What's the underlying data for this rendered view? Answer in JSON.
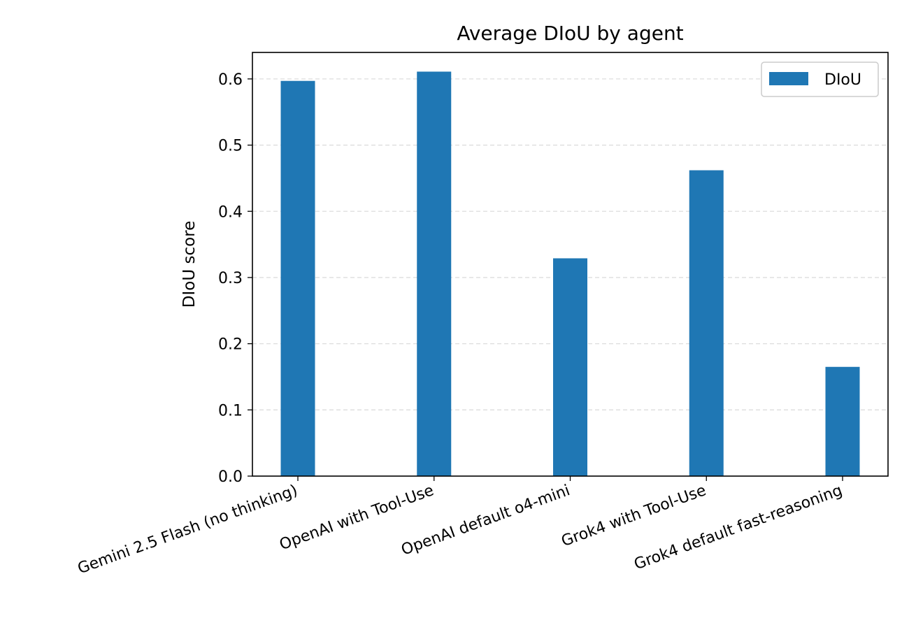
{
  "chart_data": {
    "type": "bar",
    "title": "Average DIoU by agent",
    "xlabel": "",
    "ylabel": "DIoU score",
    "categories": [
      "Gemini 2.5 Flash (no thinking)",
      "OpenAI with Tool-Use",
      "OpenAI default o4-mini",
      "Grok4 with Tool-Use",
      "Grok4 default fast-reasoning"
    ],
    "series": [
      {
        "name": "DIoU",
        "color": "#1f77b4",
        "values": [
          0.597,
          0.611,
          0.329,
          0.462,
          0.165
        ]
      }
    ],
    "ylim": [
      0.0,
      0.64
    ],
    "yticks": [
      "0.0",
      "0.1",
      "0.2",
      "0.3",
      "0.4",
      "0.5",
      "0.6"
    ],
    "grid": "y-axis dashed",
    "legend_position": "top-right",
    "xtick_rotation": "20 degrees"
  }
}
